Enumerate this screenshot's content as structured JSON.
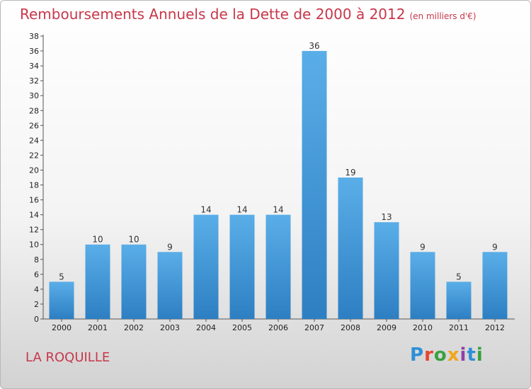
{
  "header": {
    "title": "Remboursements Annuels de la Dette de 2000 à 2012",
    "subtitle": "(en milliers d'€)"
  },
  "footer": {
    "commune": "LA ROQUILLE",
    "logo_text": "Proxiti",
    "logo_colors": [
      "#2e8fd6",
      "#e5472f",
      "#3aa040",
      "#f2a51a",
      "#8f3fa8",
      "#2e8fd6",
      "#3aa040"
    ]
  },
  "colors": {
    "title": "#c8374a",
    "bar_light": "#5aaee8",
    "bar_dark": "#2d7fc2"
  },
  "chart_data": {
    "type": "bar",
    "categories": [
      "2000",
      "2001",
      "2002",
      "2003",
      "2004",
      "2005",
      "2006",
      "2007",
      "2008",
      "2009",
      "2010",
      "2011",
      "2012"
    ],
    "values": [
      5,
      10,
      10,
      9,
      14,
      14,
      14,
      36,
      19,
      13,
      9,
      5,
      9
    ],
    "title": "Remboursements Annuels de la Dette de 2000 à 2012",
    "subtitle": "(en milliers d'€)",
    "xlabel": "",
    "ylabel": "",
    "ylim": [
      0,
      38
    ],
    "ytick_step": 2,
    "grid": false,
    "legend": "none"
  }
}
